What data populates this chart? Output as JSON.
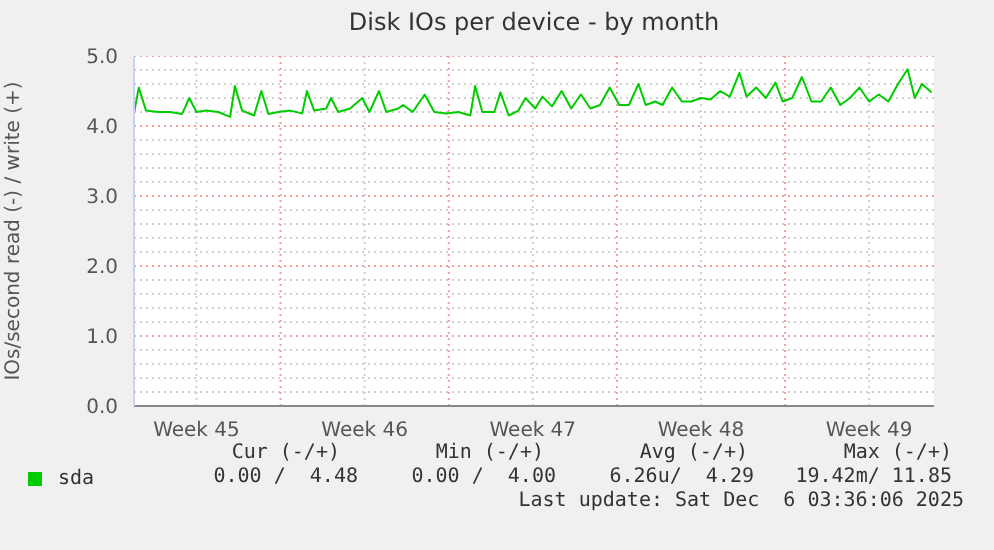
{
  "chart_data": {
    "type": "line",
    "title": "Disk IOs per device - by month",
    "ylabel": "IOs/second read (-) / write (+)",
    "x": [
      "2025-11-03T21:36",
      "2025-11-04T02:24",
      "2025-11-04T09:36",
      "2025-11-04T21:36",
      "2025-11-05T09:36",
      "2025-11-05T21:36",
      "2025-11-06T04:48",
      "2025-11-06T12:00",
      "2025-11-06T21:36",
      "2025-11-07T09:36",
      "2025-11-07T21:36",
      "2025-11-08T02:24",
      "2025-11-08T09:36",
      "2025-11-08T21:36",
      "2025-11-09T04:48",
      "2025-11-09T12:00",
      "2025-11-09T21:36",
      "2025-11-10T09:36",
      "2025-11-10T21:36",
      "2025-11-11T02:24",
      "2025-11-11T09:36",
      "2025-11-11T21:36",
      "2025-11-12T02:24",
      "2025-11-12T09:36",
      "2025-11-12T21:36",
      "2025-11-13T09:36",
      "2025-11-13T16:48",
      "2025-11-14T02:24",
      "2025-11-14T09:36",
      "2025-11-14T21:36",
      "2025-11-15T02:24",
      "2025-11-15T12:00",
      "2025-11-16T00:00",
      "2025-11-16T09:36",
      "2025-11-16T21:36",
      "2025-11-17T09:36",
      "2025-11-17T21:36",
      "2025-11-18T02:24",
      "2025-11-18T09:36",
      "2025-11-18T21:36",
      "2025-11-19T03:36",
      "2025-11-19T12:00",
      "2025-11-19T21:36",
      "2025-11-20T04:48",
      "2025-11-20T14:24",
      "2025-11-20T21:36",
      "2025-11-21T07:12",
      "2025-11-21T16:48",
      "2025-11-22T02:24",
      "2025-11-22T12:00",
      "2025-11-22T21:36",
      "2025-11-23T07:12",
      "2025-11-23T16:48",
      "2025-11-24T02:24",
      "2025-11-24T12:00",
      "2025-11-24T21:36",
      "2025-11-25T04:48",
      "2025-11-25T14:24",
      "2025-11-25T21:36",
      "2025-11-26T07:12",
      "2025-11-26T16:48",
      "2025-11-27T02:24",
      "2025-11-27T12:00",
      "2025-11-27T21:36",
      "2025-11-28T07:12",
      "2025-11-28T16:48",
      "2025-11-29T02:24",
      "2025-11-29T09:36",
      "2025-11-29T19:12",
      "2025-11-30T04:48",
      "2025-11-30T14:24",
      "2025-11-30T21:36",
      "2025-12-01T07:12",
      "2025-12-01T16:48",
      "2025-12-02T02:24",
      "2025-12-02T12:00",
      "2025-12-02T21:36",
      "2025-12-03T07:12",
      "2025-12-03T16:48",
      "2025-12-04T02:24",
      "2025-12-04T12:00",
      "2025-12-04T21:36",
      "2025-12-05T07:12",
      "2025-12-05T16:48",
      "2025-12-06T02:24",
      "2025-12-06T09:36",
      "2025-12-06T16:48",
      "2025-12-07T02:24"
    ],
    "series": [
      {
        "name": "sda",
        "color": "#00cc00",
        "values": [
          4.18,
          4.55,
          4.22,
          4.2,
          4.2,
          4.17,
          4.4,
          4.2,
          4.22,
          4.2,
          4.13,
          4.57,
          4.22,
          4.15,
          4.5,
          4.17,
          4.2,
          4.22,
          4.18,
          4.5,
          4.22,
          4.25,
          4.4,
          4.2,
          4.25,
          4.4,
          4.2,
          4.5,
          4.2,
          4.25,
          4.3,
          4.2,
          4.45,
          4.2,
          4.18,
          4.2,
          4.15,
          4.57,
          4.2,
          4.2,
          4.48,
          4.15,
          4.22,
          4.4,
          4.25,
          4.42,
          4.28,
          4.5,
          4.25,
          4.45,
          4.25,
          4.3,
          4.55,
          4.3,
          4.3,
          4.6,
          4.3,
          4.35,
          4.3,
          4.55,
          4.35,
          4.35,
          4.4,
          4.38,
          4.5,
          4.42,
          4.76,
          4.42,
          4.55,
          4.4,
          4.62,
          4.35,
          4.4,
          4.7,
          4.35,
          4.35,
          4.55,
          4.3,
          4.4,
          4.55,
          4.35,
          4.45,
          4.35,
          4.6,
          4.81,
          4.4,
          4.6,
          4.48
        ]
      }
    ],
    "xlim": [
      "2025-11-03T21:36",
      "2025-12-07T04:48"
    ],
    "xticks": [
      {
        "value": "2025-11-06T12:00",
        "label": "Week 45"
      },
      {
        "value": "2025-11-10",
        "label": null
      },
      {
        "value": "2025-11-13T12:00",
        "label": "Week 46"
      },
      {
        "value": "2025-11-17",
        "label": null
      },
      {
        "value": "2025-11-20T12:00",
        "label": "Week 47"
      },
      {
        "value": "2025-11-24",
        "label": null
      },
      {
        "value": "2025-11-27T12:00",
        "label": "Week 48"
      },
      {
        "value": "2025-12-01",
        "label": null
      },
      {
        "value": "2025-12-04T12:00",
        "label": "Week 49"
      }
    ],
    "ylim": [
      0,
      5
    ],
    "yticks": [
      {
        "value": 0,
        "label": "0.0"
      },
      {
        "value": 0.2,
        "label": null
      },
      {
        "value": 0.4,
        "label": null
      },
      {
        "value": 0.6,
        "label": null
      },
      {
        "value": 0.8,
        "label": null
      },
      {
        "value": 1,
        "label": "1.0"
      },
      {
        "value": 1.2,
        "label": null
      },
      {
        "value": 1.4,
        "label": null
      },
      {
        "value": 1.6,
        "label": null
      },
      {
        "value": 1.8,
        "label": null
      },
      {
        "value": 2,
        "label": "2.0"
      },
      {
        "value": 2.2,
        "label": null
      },
      {
        "value": 2.4,
        "label": null
      },
      {
        "value": 2.6,
        "label": null
      },
      {
        "value": 2.8,
        "label": null
      },
      {
        "value": 3,
        "label": "3.0"
      },
      {
        "value": 3.2,
        "label": null
      },
      {
        "value": 3.4,
        "label": null
      },
      {
        "value": 3.6,
        "label": null
      },
      {
        "value": 3.8,
        "label": null
      },
      {
        "value": 4,
        "label": "4.0"
      },
      {
        "value": 4.2,
        "label": null
      },
      {
        "value": 4.4,
        "label": null
      },
      {
        "value": 4.6,
        "label": null
      },
      {
        "value": 4.8,
        "label": null
      },
      {
        "value": 5,
        "label": "5.0"
      }
    ],
    "grid": true,
    "legend": "bottom",
    "marker": "none",
    "line_style": "solid",
    "annotations": [
      "Cur (-/+)",
      "Min (-/+)",
      "Avg (-/+)",
      "Max (-/+)",
      "0.00 /  4.48",
      "0.00 /  4.00",
      "6.26u/  4.29",
      "19.42m/ 11.85",
      "Last update: Sat Dec  6 03:36:06 2025"
    ]
  }
}
